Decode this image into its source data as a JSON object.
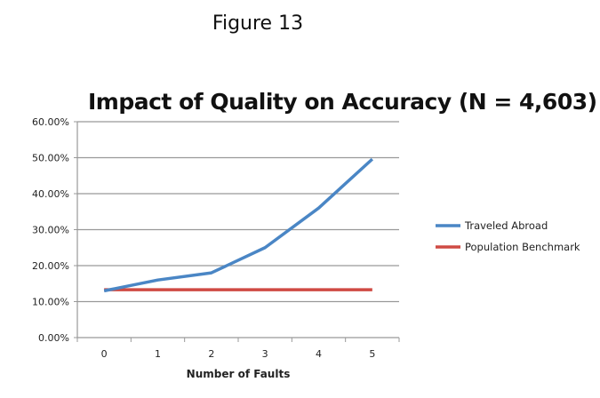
{
  "figure_label": "Figure 13",
  "chart_data": {
    "type": "line",
    "title": "Impact of Quality on Accuracy (N = 4,603)",
    "xlabel": "Number of Faults",
    "ylabel": "",
    "categories": [
      "0",
      "1",
      "2",
      "3",
      "4",
      "5"
    ],
    "ylim": [
      0,
      0.6
    ],
    "yticks": [
      "0.00%",
      "10.00%",
      "20.00%",
      "30.00%",
      "40.00%",
      "50.00%",
      "60.00%"
    ],
    "grid": true,
    "legend_position": "right",
    "series": [
      {
        "name": "Traveled Abroad",
        "color": "#4a86c5",
        "values": [
          0.13,
          0.16,
          0.18,
          0.25,
          0.36,
          0.496
        ]
      },
      {
        "name": "Population Benchmark",
        "color": "#cf4a43",
        "values": [
          0.133,
          0.133,
          0.133,
          0.133,
          0.133,
          0.133
        ]
      }
    ]
  }
}
